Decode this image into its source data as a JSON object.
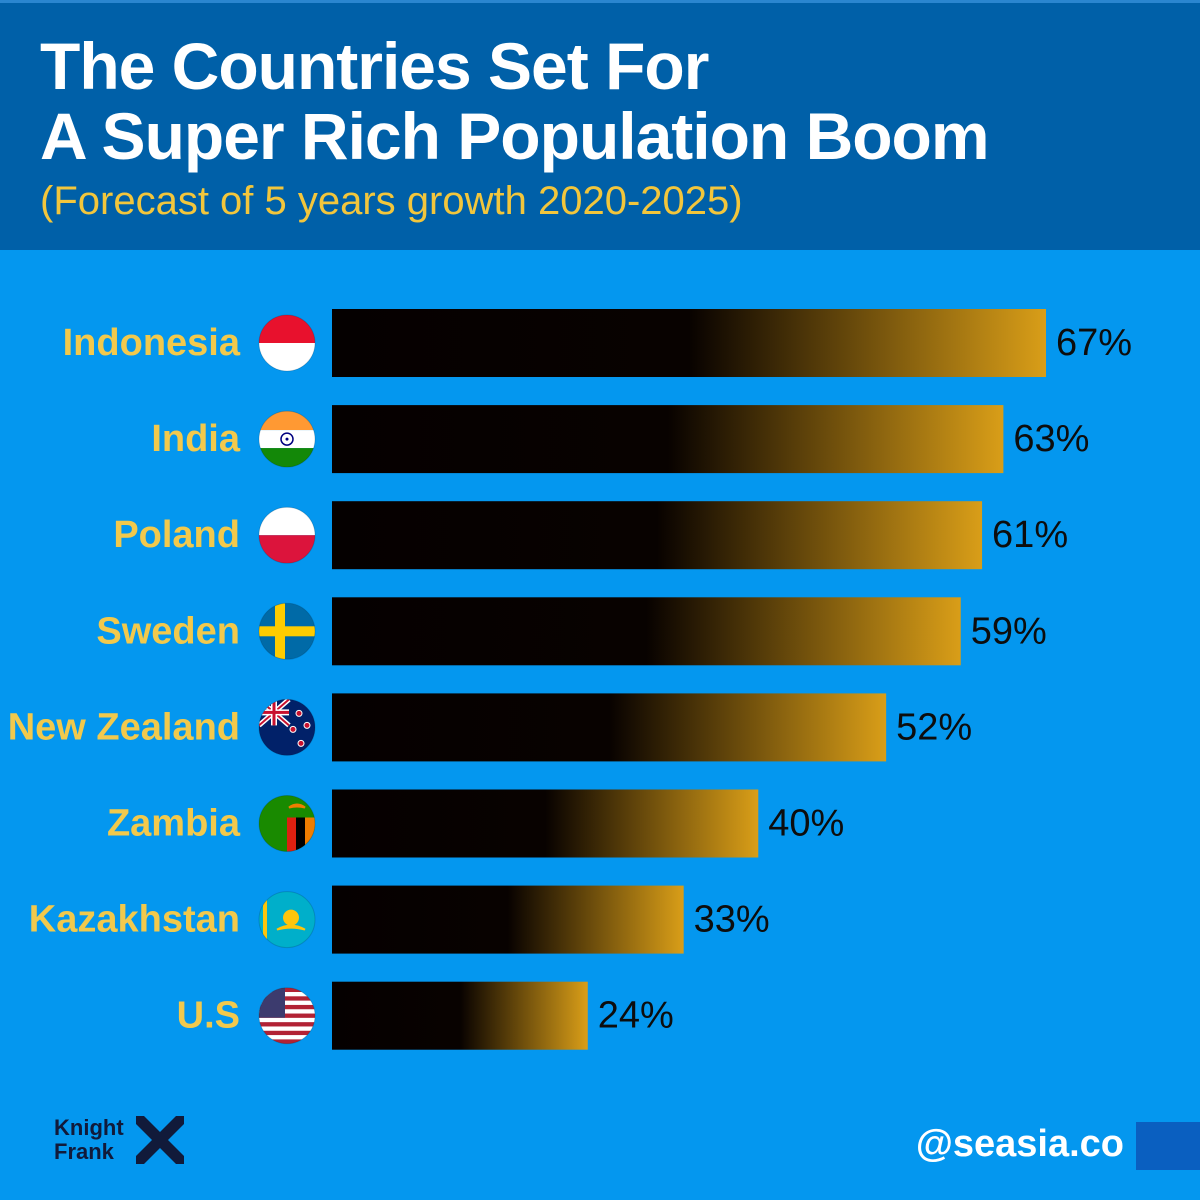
{
  "header": {
    "title_line1": "The Countries Set For",
    "title_line2": "A Super Rich Population Boom",
    "subtitle": "(Forecast of 5 years growth 2020-2025)"
  },
  "chart_data": {
    "type": "bar",
    "orientation": "horizontal",
    "title": "The Countries Set For A Super Rich Population Boom",
    "subtitle": "(Forecast of 5 years growth 2020-2025)",
    "categories": [
      "Indonesia",
      "India",
      "Poland",
      "Sweden",
      "New Zealand",
      "Zambia",
      "Kazakhstan",
      "U.S"
    ],
    "values": [
      67,
      63,
      61,
      59,
      52,
      40,
      33,
      24
    ],
    "value_labels": [
      "67%",
      "63%",
      "61%",
      "59%",
      "52%",
      "40%",
      "33%",
      "24%"
    ],
    "flag_icons": [
      "indonesia-flag-icon",
      "india-flag-icon",
      "poland-flag-icon",
      "sweden-flag-icon",
      "new-zealand-flag-icon",
      "zambia-flag-icon",
      "kazakhstan-flag-icon",
      "us-flag-icon"
    ],
    "unit": "%",
    "xlabel": "",
    "ylabel": "",
    "grid": false,
    "legend": "none",
    "bar_gradient": [
      "#050000",
      "#d99e18"
    ]
  },
  "footer": {
    "brand_line1": "Knight",
    "brand_line2": "Frank",
    "brand_icon": "knight-frank-logo-icon",
    "handle": "@seasia.co"
  },
  "colors": {
    "background": "#0497ef",
    "header_background": "#0060a8",
    "title": "#ffffff",
    "subtitle": "#f2c63c",
    "country_label": "#f2c94c",
    "value_label": "#0d0d0d",
    "corner_box": "#0a5fc0"
  }
}
